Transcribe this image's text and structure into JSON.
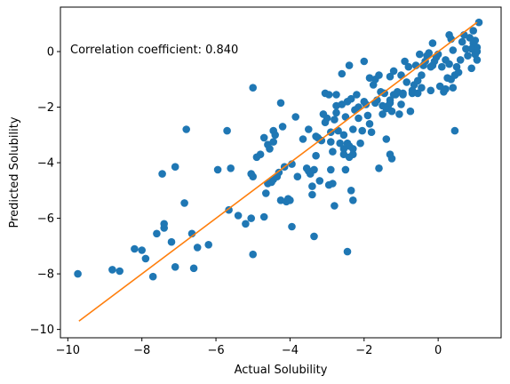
{
  "chart_data": {
    "type": "scatter",
    "title": "",
    "xlabel": "Actual Solubility",
    "ylabel": "Predicted Solubility",
    "xlim": [
      -10.2,
      1.7
    ],
    "ylim": [
      -10.3,
      1.6
    ],
    "xticks": [
      -10,
      -8,
      -6,
      -4,
      -2,
      0
    ],
    "yticks": [
      -10,
      -8,
      -6,
      -4,
      -2,
      0
    ],
    "grid": false,
    "annotation": "Correlation coefficient: 0.840",
    "colors": {
      "points": "#1f77b4",
      "fit_line": "#ff7f0e"
    },
    "fit_line": {
      "x": [
        -9.7,
        1.05
      ],
      "y": [
        -9.7,
        1.05
      ]
    },
    "points": [
      [
        -9.73,
        -8.0
      ],
      [
        -8.8,
        -7.85
      ],
      [
        -8.6,
        -7.9
      ],
      [
        -8.2,
        -7.1
      ],
      [
        -8.0,
        -7.15
      ],
      [
        -7.9,
        -7.45
      ],
      [
        -7.7,
        -8.1
      ],
      [
        -7.6,
        -6.55
      ],
      [
        -7.4,
        -6.35
      ],
      [
        -7.4,
        -6.2
      ],
      [
        -7.45,
        -4.4
      ],
      [
        -7.1,
        -4.15
      ],
      [
        -7.2,
        -6.85
      ],
      [
        -7.1,
        -7.75
      ],
      [
        -6.85,
        -5.45
      ],
      [
        -6.8,
        -2.8
      ],
      [
        -6.65,
        -6.55
      ],
      [
        -6.6,
        -7.8
      ],
      [
        -6.5,
        -7.05
      ],
      [
        -6.2,
        -6.95
      ],
      [
        -5.95,
        -4.25
      ],
      [
        -5.7,
        -2.85
      ],
      [
        -5.6,
        -4.2
      ],
      [
        -5.65,
        -5.7
      ],
      [
        -5.4,
        -5.9
      ],
      [
        -5.2,
        -6.2
      ],
      [
        -5.05,
        -6.0
      ],
      [
        -5.0,
        -7.3
      ],
      [
        -5.05,
        -4.4
      ],
      [
        -5.0,
        -4.5
      ],
      [
        -5.0,
        -1.3
      ],
      [
        -4.8,
        -3.7
      ],
      [
        -4.7,
        -3.1
      ],
      [
        -4.7,
        -5.95
      ],
      [
        -4.65,
        -5.1
      ],
      [
        -4.6,
        -4.75
      ],
      [
        -4.55,
        -3.5
      ],
      [
        -4.45,
        -4.6
      ],
      [
        -4.5,
        -4.7
      ],
      [
        -4.45,
        -2.85
      ],
      [
        -4.4,
        -3.0
      ],
      [
        -4.35,
        -4.5
      ],
      [
        -4.3,
        -4.35
      ],
      [
        -4.25,
        -1.85
      ],
      [
        -4.25,
        -5.35
      ],
      [
        -4.15,
        -4.15
      ],
      [
        -4.1,
        -5.4
      ],
      [
        -4.05,
        -5.3
      ],
      [
        -4.0,
        -5.35
      ],
      [
        -3.95,
        -6.3
      ],
      [
        -3.85,
        -2.35
      ],
      [
        -3.8,
        -4.5
      ],
      [
        -3.65,
        -3.15
      ],
      [
        -3.55,
        -4.2
      ],
      [
        -3.5,
        -4.3
      ],
      [
        -3.45,
        -4.4
      ],
      [
        -3.4,
        -5.15
      ],
      [
        -3.35,
        -4.25
      ],
      [
        -3.3,
        -3.75
      ],
      [
        -3.25,
        -3.1
      ],
      [
        -3.2,
        -4.65
      ],
      [
        -3.15,
        -3.2
      ],
      [
        -3.1,
        -2.25
      ],
      [
        -3.05,
        -2.55
      ],
      [
        -3.05,
        -1.5
      ],
      [
        -2.95,
        -1.55
      ],
      [
        -2.95,
        -4.8
      ],
      [
        -2.9,
        -3.25
      ],
      [
        -2.85,
        -4.75
      ],
      [
        -2.85,
        -3.6
      ],
      [
        -2.8,
        -2.45
      ],
      [
        -2.75,
        -2.2
      ],
      [
        -2.75,
        -1.55
      ],
      [
        -2.7,
        -2.85
      ],
      [
        -2.65,
        -3.3
      ],
      [
        -2.6,
        -1.9
      ],
      [
        -2.55,
        -3.5
      ],
      [
        -2.5,
        -2.35
      ],
      [
        -2.5,
        -4.25
      ],
      [
        -2.45,
        -3.3
      ],
      [
        -2.45,
        -1.8
      ],
      [
        -2.4,
        -3.8
      ],
      [
        -2.35,
        -1.7
      ],
      [
        -2.3,
        -2.8
      ],
      [
        -2.3,
        -3.5
      ],
      [
        -2.3,
        -3.7
      ],
      [
        -2.25,
        -2.1
      ],
      [
        -2.2,
        -1.55
      ],
      [
        -2.15,
        -2.0
      ],
      [
        -2.1,
        -3.3
      ],
      [
        -2.05,
        -2.85
      ],
      [
        -2.0,
        -1.8
      ],
      [
        -2.0,
        -0.35
      ],
      [
        -1.95,
        -1.9
      ],
      [
        -1.9,
        -2.3
      ],
      [
        -1.85,
        -2.6
      ],
      [
        -1.75,
        -1.2
      ],
      [
        -1.7,
        -1.85
      ],
      [
        -1.65,
        -1.75
      ],
      [
        -1.6,
        -0.85
      ],
      [
        -1.55,
        -1.45
      ],
      [
        -1.5,
        -2.25
      ],
      [
        -1.45,
        -1.5
      ],
      [
        -1.4,
        -2.05
      ],
      [
        -1.35,
        -1.95
      ],
      [
        -1.3,
        -1.75
      ],
      [
        -1.3,
        -1.85
      ],
      [
        -1.25,
        -2.15
      ],
      [
        -1.2,
        -0.7
      ],
      [
        -1.15,
        -1.55
      ],
      [
        -1.1,
        -1.45
      ],
      [
        -1.05,
        -2.25
      ],
      [
        -1.0,
        -1.9
      ],
      [
        -0.95,
        -1.5
      ],
      [
        -0.9,
        -0.35
      ],
      [
        -0.85,
        -1.1
      ],
      [
        -0.8,
        -0.55
      ],
      [
        -0.75,
        -2.15
      ],
      [
        -0.7,
        -1.4
      ],
      [
        -0.65,
        -1.2
      ],
      [
        -0.6,
        -0.5
      ],
      [
        -0.55,
        -1.05
      ],
      [
        -0.5,
        -0.1
      ],
      [
        -0.45,
        -0.85
      ],
      [
        -0.4,
        -0.5
      ],
      [
        -0.35,
        -0.35
      ],
      [
        -0.3,
        -0.15
      ],
      [
        -0.25,
        -0.05
      ],
      [
        -0.2,
        -0.55
      ],
      [
        -0.15,
        0.3
      ],
      [
        -0.1,
        -0.35
      ],
      [
        -0.05,
        -0.2
      ],
      [
        0.0,
        -0.1
      ],
      [
        0.05,
        -1.25
      ],
      [
        0.1,
        -0.55
      ],
      [
        0.15,
        -1.45
      ],
      [
        0.2,
        -0.3
      ],
      [
        0.25,
        -0.95
      ],
      [
        0.3,
        -0.45
      ],
      [
        0.35,
        -1.0
      ],
      [
        0.4,
        0.05
      ],
      [
        0.45,
        -0.85
      ],
      [
        0.5,
        -0.55
      ],
      [
        0.55,
        -0.75
      ],
      [
        0.6,
        -0.3
      ],
      [
        0.65,
        0.35
      ],
      [
        0.7,
        0.6
      ],
      [
        0.75,
        0.1
      ],
      [
        0.8,
        -0.15
      ],
      [
        0.85,
        0.5
      ],
      [
        0.9,
        -0.6
      ],
      [
        0.95,
        0.75
      ],
      [
        1.0,
        -0.1
      ],
      [
        1.0,
        0.4
      ],
      [
        1.05,
        0.15
      ],
      [
        1.05,
        -0.3
      ],
      [
        1.1,
        1.05
      ],
      [
        1.05,
        0.0
      ],
      [
        0.95,
        0.3
      ],
      [
        0.9,
        0.1
      ],
      [
        0.3,
        0.6
      ],
      [
        0.35,
        0.45
      ],
      [
        0.45,
        -2.85
      ],
      [
        0.4,
        -1.3
      ],
      [
        0.2,
        -1.35
      ],
      [
        -0.2,
        -1.4
      ],
      [
        -0.45,
        -1.3
      ],
      [
        -0.7,
        -1.5
      ],
      [
        -1.0,
        -0.85
      ],
      [
        -1.6,
        -4.2
      ],
      [
        -1.3,
        -0.9
      ],
      [
        -1.2,
        -1.55
      ],
      [
        -2.6,
        -0.8
      ],
      [
        -2.4,
        -0.5
      ],
      [
        -2.75,
        -1.95
      ],
      [
        -3.0,
        -2.4
      ],
      [
        -3.5,
        -2.8
      ],
      [
        -3.3,
        -3.05
      ],
      [
        -2.9,
        -2.9
      ],
      [
        -3.4,
        -4.85
      ],
      [
        -3.35,
        -6.65
      ],
      [
        -2.45,
        -7.2
      ],
      [
        -2.3,
        -5.35
      ],
      [
        -2.35,
        -5.0
      ],
      [
        -2.8,
        -5.55
      ],
      [
        -2.4,
        -3.4
      ],
      [
        -1.4,
        -3.15
      ],
      [
        -1.5,
        -1.95
      ],
      [
        -1.7,
        -1.0
      ],
      [
        -2.15,
        -2.4
      ],
      [
        -1.25,
        -3.85
      ],
      [
        -1.3,
        -3.7
      ],
      [
        -1.8,
        -2.9
      ],
      [
        -2.55,
        -3.7
      ],
      [
        -4.45,
        -3.25
      ],
      [
        -4.2,
        -2.7
      ],
      [
        -4.9,
        -3.8
      ],
      [
        -4.6,
        -3.35
      ],
      [
        -3.95,
        -4.05
      ],
      [
        -2.55,
        -3.0
      ],
      [
        -1.85,
        -0.95
      ],
      [
        -2.9,
        -4.25
      ],
      [
        -0.95,
        -1.55
      ],
      [
        -0.55,
        -1.5
      ],
      [
        -0.15,
        -0.5
      ]
    ]
  }
}
